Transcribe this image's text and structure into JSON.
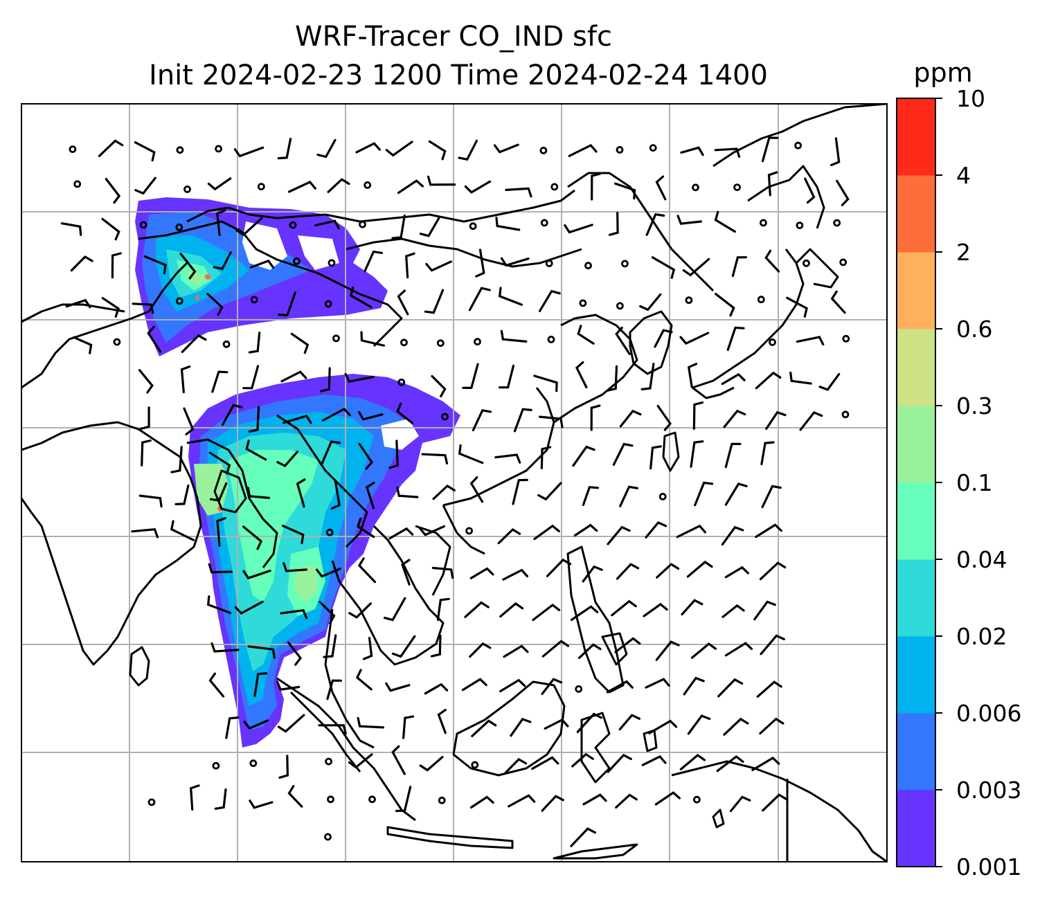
{
  "title": {
    "line1": "WRF-Tracer CO_IND sfc",
    "line2": "Init 2024-02-23 1200 Time 2024-02-24 1400"
  },
  "colorbar": {
    "unit": "ppm",
    "levels": [
      "0.001",
      "0.003",
      "0.006",
      "0.02",
      "0.04",
      "0.1",
      "0.3",
      "0.6",
      "2",
      "4",
      "10"
    ],
    "colors": [
      "#6633ff",
      "#3377ff",
      "#00b2ee",
      "#2edbd8",
      "#66ffbb",
      "#99f29b",
      "#cde185",
      "#ffb05c",
      "#ff6e3a",
      "#ff2a1a"
    ]
  },
  "chart_data": {
    "type": "map",
    "field": "CO_IND tracer concentration (surface)",
    "color_scale_ppm": [
      0.001,
      0.003,
      0.006,
      0.02,
      0.04,
      0.1,
      0.3,
      0.6,
      2,
      4,
      10
    ],
    "overlays": [
      "coastlines",
      "country borders",
      "lat/lon gridlines",
      "wind barbs",
      "calm-wind circles"
    ],
    "grid": true
  }
}
